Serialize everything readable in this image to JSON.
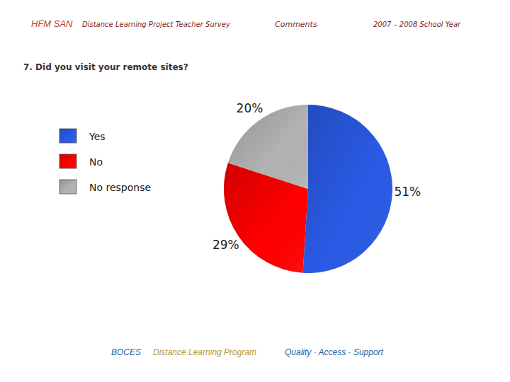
{
  "header": {
    "organization": "HFM SAN",
    "project": "Distance Learning Project  Teacher Survey",
    "section": "Comments",
    "year": "2007 – 2008 School Year"
  },
  "chart_data": {
    "type": "pie",
    "title": "7. Did you visit your remote sites?",
    "categories": [
      "Yes",
      "No",
      "No response"
    ],
    "values": [
      51,
      29,
      20
    ],
    "value_labels": [
      "51%",
      "29%",
      "20%"
    ],
    "colors": [
      "#2a5be6",
      "#ff0000",
      "#b3b3b3"
    ],
    "data_labels": true,
    "legend": "left"
  },
  "footer": {
    "organization": "BOCES",
    "program": "Distance Learning Program",
    "motto": "Quality · Access · Support"
  }
}
